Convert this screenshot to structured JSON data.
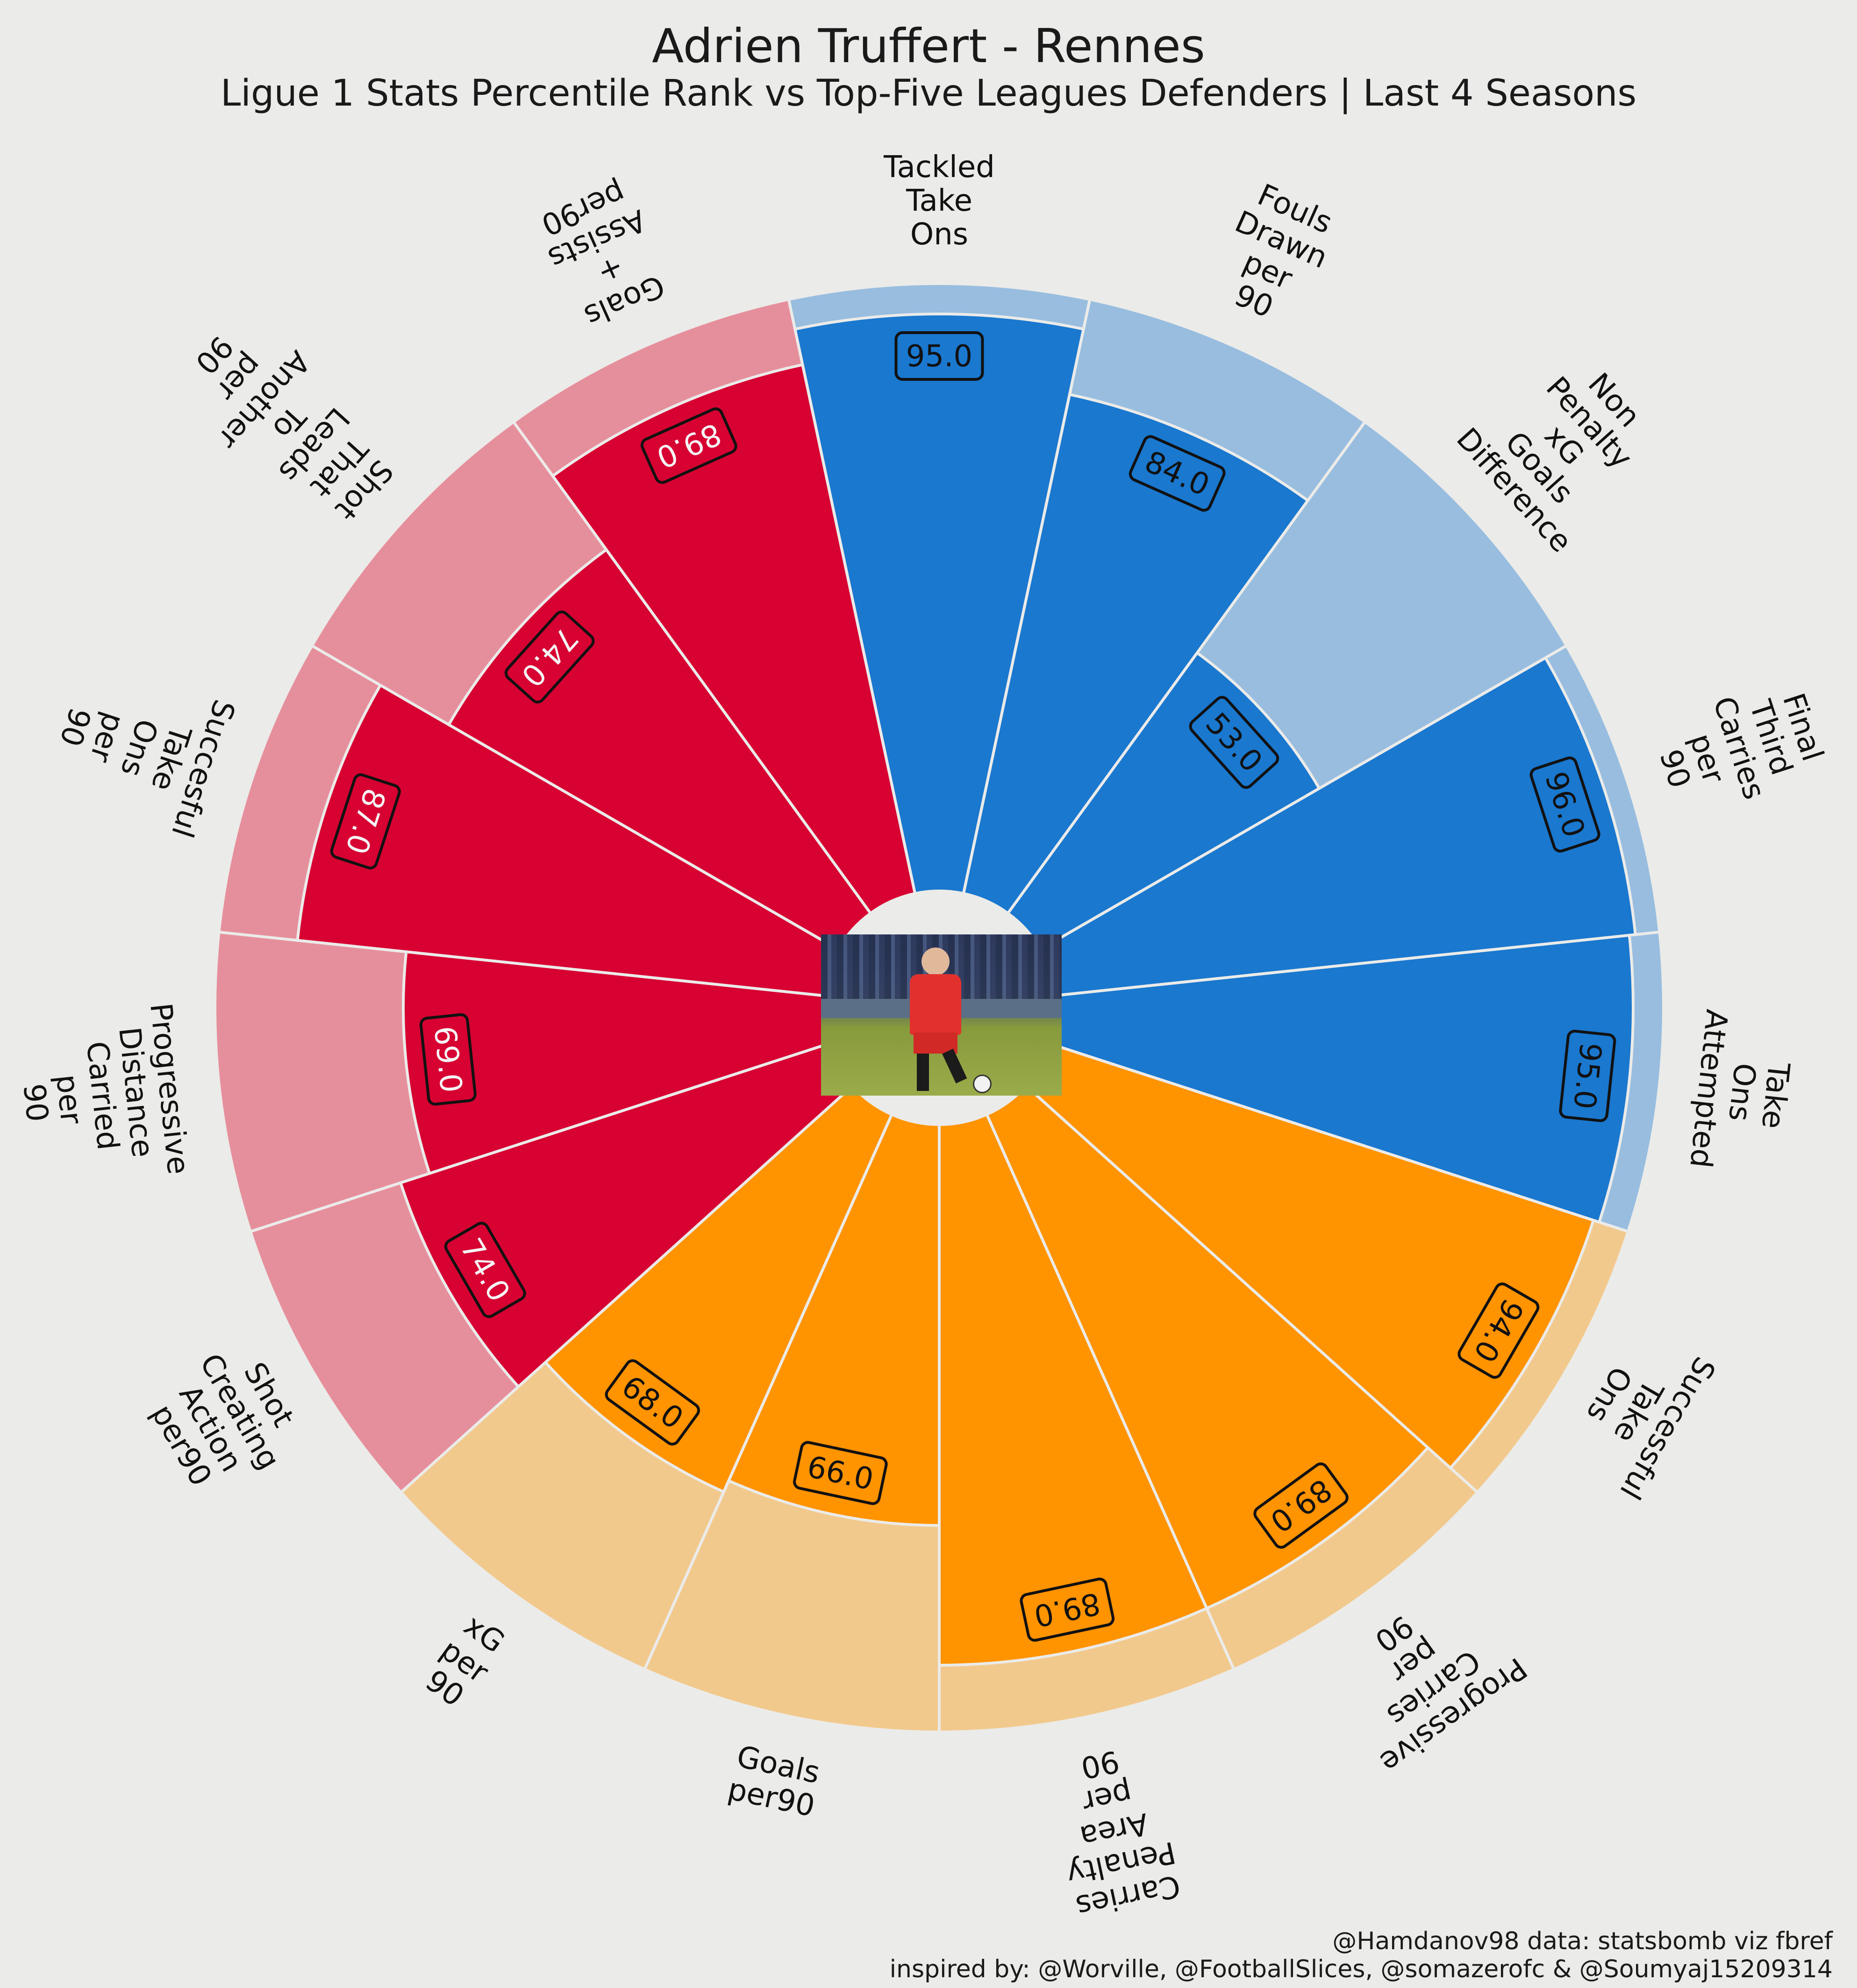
{
  "title": "Adrien Truffert - Rennes",
  "subtitle": "Ligue 1 Stats Percentile Rank vs Top-Five Leagues Defenders | Last 4 Seasons",
  "credits": {
    "line1": "@Hamdanov98 data: statsbomb viz fbref",
    "line2": "inspired by: @Worville, @FootballSlices, @somazerofc & @Soumyaj15209314"
  },
  "colors": {
    "background": "#ebebe9",
    "attacking": "#d70232",
    "attacking_light": "#e68f9c",
    "possession": "#1a78cf",
    "possession_light": "#98bddf",
    "carrying": "#ff9300",
    "carrying_light": "#f2c98d"
  },
  "chart_data": {
    "type": "polar_bar",
    "rmax": 100,
    "segments": [
      {
        "label": "Tackled\nTake\nOns",
        "value": 95.0,
        "group": "possession"
      },
      {
        "label": "Fouls\nDrawn\nper\n90",
        "value": 84.0,
        "group": "possession"
      },
      {
        "label": "Non\nPenalty\nxG\nGoals\nDifference",
        "value": 53.0,
        "group": "possession"
      },
      {
        "label": "Final\nThird\nCarries\nper\n90",
        "value": 96.0,
        "group": "possession"
      },
      {
        "label": "Take\nOns\nAttempted",
        "value": 95.0,
        "group": "possession"
      },
      {
        "label": "Successful\nTake\nOns",
        "value": 94.0,
        "group": "carrying"
      },
      {
        "label": "Progressive\nCarries\nper\n90",
        "value": 89.0,
        "group": "carrying"
      },
      {
        "label": "Carries\nPenalty\nArea\nper\n90",
        "value": 89.0,
        "group": "carrying"
      },
      {
        "label": "Goals\nper90",
        "value": 66.0,
        "group": "carrying"
      },
      {
        "label": "xG\nper\n90",
        "value": 68.0,
        "group": "carrying"
      },
      {
        "label": "Shot\nCreating\nAction\nper90",
        "value": 74.0,
        "group": "attacking"
      },
      {
        "label": "Progressive\nDistance\nCarried\nper\n90",
        "value": 69.0,
        "group": "attacking"
      },
      {
        "label": "Succesful\nTake\nOns\nper\n90",
        "value": 87.0,
        "group": "attacking"
      },
      {
        "label": "Shot\nThat\nLeads\nTo\nAnother\nper\n90",
        "value": 74.0,
        "group": "attacking"
      },
      {
        "label": "Goals\n+\nAssists\nper90",
        "value": 89.0,
        "group": "attacking"
      }
    ]
  }
}
